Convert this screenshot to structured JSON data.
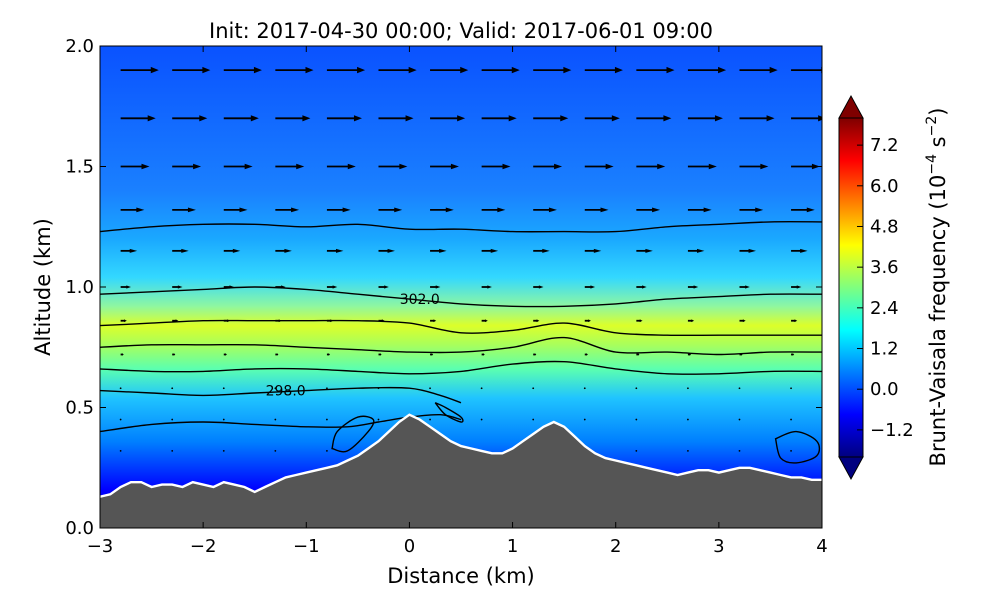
{
  "chart_data": {
    "type": "heatmap",
    "title": "Init: 2017-04-30 00:00; Valid: 2017-06-01 09:00",
    "xlabel": "Distance (km)",
    "ylabel": "Altitude (km)",
    "xlim": [
      -3,
      4
    ],
    "ylim": [
      0.0,
      2.0
    ],
    "xticks": [
      -3,
      -2,
      -1,
      0,
      1,
      2,
      3,
      4
    ],
    "xtick_labels": [
      "−3",
      "−2",
      "−1",
      "0",
      "1",
      "2",
      "3",
      "4"
    ],
    "yticks": [
      0.0,
      0.5,
      1.0,
      1.5,
      2.0
    ],
    "ytick_labels": [
      "0.0",
      "0.5",
      "1.0",
      "1.5",
      "2.0"
    ],
    "colorbar": {
      "label_text": "Brunt-Vaisala frequency (10",
      "label_exp1": "−4",
      "label_mid": " s",
      "label_exp2": "−2",
      "label_end": ")",
      "range": [
        -2.0,
        8.0
      ],
      "ticks": [
        -1.2,
        0.0,
        1.2,
        2.4,
        3.6,
        4.8,
        6.0,
        7.2
      ],
      "tick_labels": [
        "−1.2",
        "0.0",
        "1.2",
        "2.4",
        "3.6",
        "4.8",
        "6.0",
        "7.2"
      ],
      "extend": "both",
      "colormap": [
        "#00007f",
        "#0000ff",
        "#007fff",
        "#00ffff",
        "#7fff7f",
        "#ffff00",
        "#ff7f00",
        "#ff0000",
        "#7f0000"
      ]
    },
    "terrain": {
      "x": [
        -3.0,
        -2.9,
        -2.8,
        -2.7,
        -2.6,
        -2.5,
        -2.4,
        -2.3,
        -2.2,
        -2.1,
        -2.0,
        -1.9,
        -1.8,
        -1.7,
        -1.6,
        -1.5,
        -1.4,
        -1.3,
        -1.2,
        -1.1,
        -1.0,
        -0.9,
        -0.8,
        -0.7,
        -0.6,
        -0.5,
        -0.4,
        -0.3,
        -0.2,
        -0.1,
        0.0,
        0.1,
        0.2,
        0.3,
        0.4,
        0.5,
        0.6,
        0.7,
        0.8,
        0.9,
        1.0,
        1.1,
        1.2,
        1.3,
        1.4,
        1.5,
        1.6,
        1.7,
        1.8,
        1.9,
        2.0,
        2.1,
        2.2,
        2.3,
        2.4,
        2.5,
        2.6,
        2.7,
        2.8,
        2.9,
        3.0,
        3.1,
        3.2,
        3.3,
        3.4,
        3.5,
        3.6,
        3.7,
        3.8,
        3.9,
        4.0
      ],
      "height": [
        0.13,
        0.14,
        0.17,
        0.19,
        0.19,
        0.17,
        0.18,
        0.18,
        0.17,
        0.19,
        0.18,
        0.17,
        0.19,
        0.18,
        0.17,
        0.15,
        0.17,
        0.19,
        0.21,
        0.22,
        0.23,
        0.24,
        0.25,
        0.26,
        0.28,
        0.3,
        0.33,
        0.36,
        0.4,
        0.44,
        0.47,
        0.45,
        0.42,
        0.39,
        0.36,
        0.34,
        0.33,
        0.32,
        0.31,
        0.31,
        0.33,
        0.36,
        0.39,
        0.42,
        0.44,
        0.42,
        0.38,
        0.34,
        0.31,
        0.29,
        0.28,
        0.27,
        0.26,
        0.25,
        0.24,
        0.23,
        0.22,
        0.23,
        0.24,
        0.24,
        0.23,
        0.24,
        0.25,
        0.25,
        0.24,
        0.23,
        0.22,
        0.21,
        0.21,
        0.2,
        0.2
      ]
    },
    "theta_contours": [
      {
        "x": [
          -3.0,
          -2.5,
          -2.0,
          -1.5,
          -1.0,
          -0.6,
          -0.3,
          0.0,
          0.3,
          0.5
        ],
        "y": [
          0.4,
          0.43,
          0.44,
          0.43,
          0.42,
          0.42,
          0.44,
          0.46,
          0.47,
          0.45
        ]
      },
      {
        "x": [
          -3.0,
          -2.5,
          -2.0,
          -1.5,
          -1.0,
          -0.5,
          0.0,
          0.3,
          0.5
        ],
        "y": [
          0.57,
          0.56,
          0.55,
          0.56,
          0.57,
          0.58,
          0.58,
          0.55,
          0.52
        ]
      },
      {
        "x": [
          -3.0,
          -2.5,
          -2.0,
          -1.5,
          -1.0,
          -0.5,
          0.0,
          0.5,
          1.0,
          1.5,
          2.0,
          2.5,
          3.0,
          3.5,
          4.0
        ],
        "y": [
          0.66,
          0.65,
          0.65,
          0.66,
          0.66,
          0.65,
          0.64,
          0.65,
          0.68,
          0.69,
          0.66,
          0.64,
          0.64,
          0.65,
          0.65
        ]
      },
      {
        "x": [
          -3.0,
          -2.5,
          -2.0,
          -1.5,
          -1.0,
          -0.5,
          0.0,
          0.5,
          1.0,
          1.5,
          2.0,
          2.5,
          3.0,
          3.5,
          4.0
        ],
        "y": [
          0.75,
          0.76,
          0.76,
          0.76,
          0.75,
          0.74,
          0.73,
          0.73,
          0.75,
          0.79,
          0.73,
          0.73,
          0.72,
          0.73,
          0.73
        ]
      },
      {
        "x": [
          -3.0,
          -2.5,
          -2.0,
          -1.5,
          -1.0,
          -0.5,
          0.0,
          0.5,
          1.0,
          1.5,
          2.0,
          2.5,
          3.0,
          3.5,
          4.0
        ],
        "y": [
          0.84,
          0.85,
          0.86,
          0.86,
          0.86,
          0.86,
          0.85,
          0.81,
          0.82,
          0.85,
          0.81,
          0.8,
          0.8,
          0.8,
          0.8
        ]
      },
      {
        "x": [
          -3.0,
          -2.5,
          -2.0,
          -1.5,
          -1.0,
          -0.5,
          0.0,
          0.5,
          1.0,
          1.5,
          2.0,
          2.5,
          3.0,
          3.5,
          4.0
        ],
        "y": [
          0.97,
          0.98,
          0.99,
          1.0,
          0.99,
          0.97,
          0.95,
          0.93,
          0.92,
          0.92,
          0.93,
          0.95,
          0.96,
          0.97,
          0.97
        ]
      },
      {
        "x": [
          -3.0,
          -2.5,
          -2.0,
          -1.5,
          -1.0,
          -0.5,
          0.0,
          0.5,
          1.0,
          1.5,
          2.0,
          2.5,
          3.0,
          3.5,
          4.0
        ],
        "y": [
          1.23,
          1.25,
          1.26,
          1.26,
          1.25,
          1.26,
          1.24,
          1.24,
          1.23,
          1.23,
          1.23,
          1.25,
          1.26,
          1.27,
          1.27
        ]
      }
    ],
    "closed_contours": [
      {
        "x": [
          -0.75,
          -0.6,
          -0.4,
          -0.35,
          -0.5,
          -0.7,
          -0.75
        ],
        "y": [
          0.33,
          0.32,
          0.4,
          0.45,
          0.46,
          0.4,
          0.33
        ]
      },
      {
        "x": [
          0.25,
          0.35,
          0.5,
          0.5,
          0.35,
          0.25
        ],
        "y": [
          0.52,
          0.5,
          0.46,
          0.44,
          0.47,
          0.52
        ]
      },
      {
        "x": [
          3.55,
          3.75,
          3.95,
          3.95,
          3.75,
          3.6,
          3.55
        ],
        "y": [
          0.37,
          0.4,
          0.36,
          0.3,
          0.27,
          0.29,
          0.37
        ]
      }
    ],
    "contour_labels": [
      {
        "text": "302.0",
        "x": 0.1,
        "y": 0.95
      },
      {
        "text": "298.0",
        "x": -1.2,
        "y": 0.57
      }
    ],
    "wind_vectors": {
      "x": [
        -2.8,
        -2.3,
        -1.8,
        -1.3,
        -0.8,
        -0.3,
        0.2,
        0.7,
        1.2,
        1.7,
        2.2,
        2.7,
        3.2,
        3.7
      ],
      "rows": [
        {
          "y": 1.9,
          "u": 0.37
        },
        {
          "y": 1.7,
          "u": 0.34
        },
        {
          "y": 1.5,
          "u": 0.28
        },
        {
          "y": 1.32,
          "u": 0.23
        },
        {
          "y": 1.15,
          "u": 0.16
        },
        {
          "y": 1.0,
          "u": 0.1
        },
        {
          "y": 0.86,
          "u": 0.06
        },
        {
          "y": 0.72,
          "u": 0.03
        },
        {
          "y": 0.58,
          "u": 0.015
        },
        {
          "y": 0.45,
          "u": 0.01
        },
        {
          "y": 0.32,
          "u": 0.005
        }
      ]
    }
  }
}
